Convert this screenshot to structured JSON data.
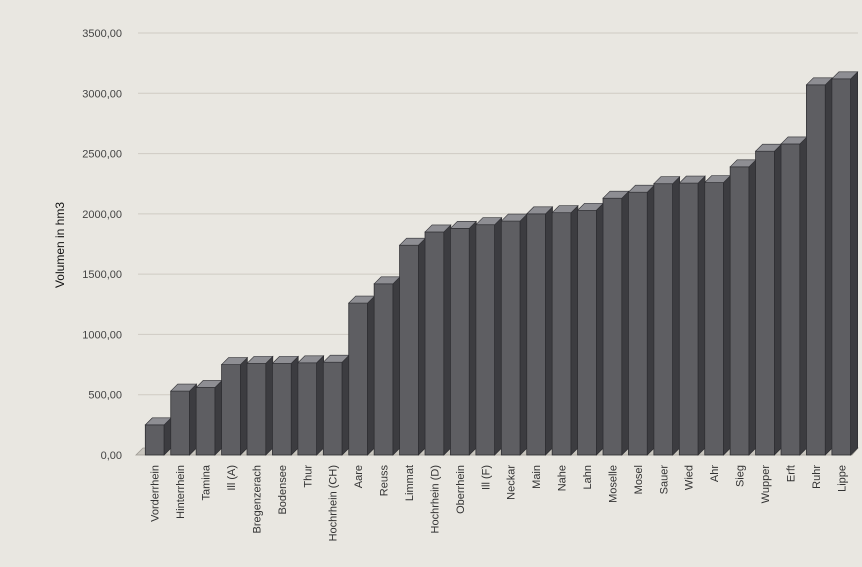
{
  "chart_data": {
    "type": "bar",
    "ylabel": "Volumen in hm3",
    "ylim": [
      0,
      3500
    ],
    "yticks": [
      "0,00",
      "500,00",
      "1000,00",
      "1500,00",
      "2000,00",
      "2500,00",
      "3000,00",
      "3500,00"
    ],
    "grid": true,
    "categories": [
      "Vorderrhein",
      "Hinterrhein",
      "Tamina",
      "Ill (A)",
      "Bregenzerach",
      "Bodensee",
      "Thur",
      "Hochrhein (CH)",
      "Aare",
      "Reuss",
      "Limmat",
      "Hochrhein (D)",
      "Oberrhein",
      "Ill (F)",
      "Neckar",
      "Main",
      "Nahe",
      "Lahn",
      "Moselle",
      "Mosel",
      "Sauer",
      "Wied",
      "Ahr",
      "Sieg",
      "Wupper",
      "Erft",
      "Ruhr",
      "Lippe"
    ],
    "values": [
      250,
      530,
      560,
      750,
      760,
      760,
      765,
      770,
      1260,
      1420,
      1740,
      1850,
      1880,
      1910,
      1940,
      2000,
      2010,
      2030,
      2130,
      2180,
      2250,
      2255,
      2260,
      2390,
      2520,
      2580,
      3070,
      3120
    ]
  }
}
